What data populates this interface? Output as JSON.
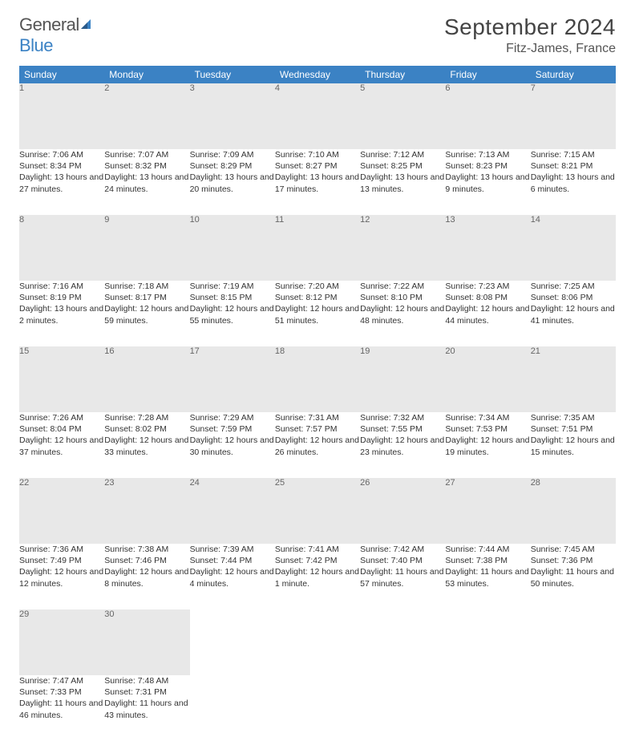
{
  "logo": {
    "word1": "General",
    "word2": "Blue"
  },
  "title": "September 2024",
  "location": "Fitz-James, France",
  "colors": {
    "header_bg": "#3b82c4",
    "daynum_bg": "#e8e8e8",
    "rule": "#2a5a8a",
    "text": "#333333"
  },
  "day_headers": [
    "Sunday",
    "Monday",
    "Tuesday",
    "Wednesday",
    "Thursday",
    "Friday",
    "Saturday"
  ],
  "weeks": [
    [
      {
        "n": "1",
        "sr": "Sunrise: 7:06 AM",
        "ss": "Sunset: 8:34 PM",
        "dl": "Daylight: 13 hours and 27 minutes."
      },
      {
        "n": "2",
        "sr": "Sunrise: 7:07 AM",
        "ss": "Sunset: 8:32 PM",
        "dl": "Daylight: 13 hours and 24 minutes."
      },
      {
        "n": "3",
        "sr": "Sunrise: 7:09 AM",
        "ss": "Sunset: 8:29 PM",
        "dl": "Daylight: 13 hours and 20 minutes."
      },
      {
        "n": "4",
        "sr": "Sunrise: 7:10 AM",
        "ss": "Sunset: 8:27 PM",
        "dl": "Daylight: 13 hours and 17 minutes."
      },
      {
        "n": "5",
        "sr": "Sunrise: 7:12 AM",
        "ss": "Sunset: 8:25 PM",
        "dl": "Daylight: 13 hours and 13 minutes."
      },
      {
        "n": "6",
        "sr": "Sunrise: 7:13 AM",
        "ss": "Sunset: 8:23 PM",
        "dl": "Daylight: 13 hours and 9 minutes."
      },
      {
        "n": "7",
        "sr": "Sunrise: 7:15 AM",
        "ss": "Sunset: 8:21 PM",
        "dl": "Daylight: 13 hours and 6 minutes."
      }
    ],
    [
      {
        "n": "8",
        "sr": "Sunrise: 7:16 AM",
        "ss": "Sunset: 8:19 PM",
        "dl": "Daylight: 13 hours and 2 minutes."
      },
      {
        "n": "9",
        "sr": "Sunrise: 7:18 AM",
        "ss": "Sunset: 8:17 PM",
        "dl": "Daylight: 12 hours and 59 minutes."
      },
      {
        "n": "10",
        "sr": "Sunrise: 7:19 AM",
        "ss": "Sunset: 8:15 PM",
        "dl": "Daylight: 12 hours and 55 minutes."
      },
      {
        "n": "11",
        "sr": "Sunrise: 7:20 AM",
        "ss": "Sunset: 8:12 PM",
        "dl": "Daylight: 12 hours and 51 minutes."
      },
      {
        "n": "12",
        "sr": "Sunrise: 7:22 AM",
        "ss": "Sunset: 8:10 PM",
        "dl": "Daylight: 12 hours and 48 minutes."
      },
      {
        "n": "13",
        "sr": "Sunrise: 7:23 AM",
        "ss": "Sunset: 8:08 PM",
        "dl": "Daylight: 12 hours and 44 minutes."
      },
      {
        "n": "14",
        "sr": "Sunrise: 7:25 AM",
        "ss": "Sunset: 8:06 PM",
        "dl": "Daylight: 12 hours and 41 minutes."
      }
    ],
    [
      {
        "n": "15",
        "sr": "Sunrise: 7:26 AM",
        "ss": "Sunset: 8:04 PM",
        "dl": "Daylight: 12 hours and 37 minutes."
      },
      {
        "n": "16",
        "sr": "Sunrise: 7:28 AM",
        "ss": "Sunset: 8:02 PM",
        "dl": "Daylight: 12 hours and 33 minutes."
      },
      {
        "n": "17",
        "sr": "Sunrise: 7:29 AM",
        "ss": "Sunset: 7:59 PM",
        "dl": "Daylight: 12 hours and 30 minutes."
      },
      {
        "n": "18",
        "sr": "Sunrise: 7:31 AM",
        "ss": "Sunset: 7:57 PM",
        "dl": "Daylight: 12 hours and 26 minutes."
      },
      {
        "n": "19",
        "sr": "Sunrise: 7:32 AM",
        "ss": "Sunset: 7:55 PM",
        "dl": "Daylight: 12 hours and 23 minutes."
      },
      {
        "n": "20",
        "sr": "Sunrise: 7:34 AM",
        "ss": "Sunset: 7:53 PM",
        "dl": "Daylight: 12 hours and 19 minutes."
      },
      {
        "n": "21",
        "sr": "Sunrise: 7:35 AM",
        "ss": "Sunset: 7:51 PM",
        "dl": "Daylight: 12 hours and 15 minutes."
      }
    ],
    [
      {
        "n": "22",
        "sr": "Sunrise: 7:36 AM",
        "ss": "Sunset: 7:49 PM",
        "dl": "Daylight: 12 hours and 12 minutes."
      },
      {
        "n": "23",
        "sr": "Sunrise: 7:38 AM",
        "ss": "Sunset: 7:46 PM",
        "dl": "Daylight: 12 hours and 8 minutes."
      },
      {
        "n": "24",
        "sr": "Sunrise: 7:39 AM",
        "ss": "Sunset: 7:44 PM",
        "dl": "Daylight: 12 hours and 4 minutes."
      },
      {
        "n": "25",
        "sr": "Sunrise: 7:41 AM",
        "ss": "Sunset: 7:42 PM",
        "dl": "Daylight: 12 hours and 1 minute."
      },
      {
        "n": "26",
        "sr": "Sunrise: 7:42 AM",
        "ss": "Sunset: 7:40 PM",
        "dl": "Daylight: 11 hours and 57 minutes."
      },
      {
        "n": "27",
        "sr": "Sunrise: 7:44 AM",
        "ss": "Sunset: 7:38 PM",
        "dl": "Daylight: 11 hours and 53 minutes."
      },
      {
        "n": "28",
        "sr": "Sunrise: 7:45 AM",
        "ss": "Sunset: 7:36 PM",
        "dl": "Daylight: 11 hours and 50 minutes."
      }
    ],
    [
      {
        "n": "29",
        "sr": "Sunrise: 7:47 AM",
        "ss": "Sunset: 7:33 PM",
        "dl": "Daylight: 11 hours and 46 minutes."
      },
      {
        "n": "30",
        "sr": "Sunrise: 7:48 AM",
        "ss": "Sunset: 7:31 PM",
        "dl": "Daylight: 11 hours and 43 minutes."
      },
      null,
      null,
      null,
      null,
      null
    ]
  ]
}
